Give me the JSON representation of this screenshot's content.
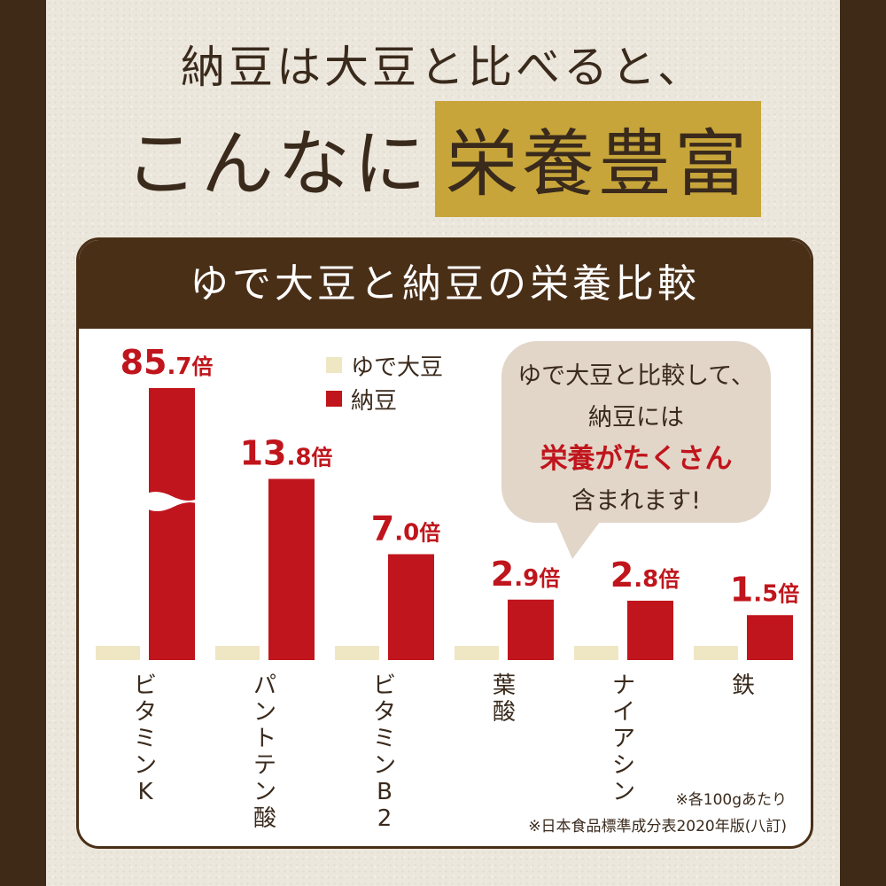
{
  "headline": {
    "line1": "納豆は大豆と比べると、",
    "line2_plain": "こんなに",
    "line2_highlight": "栄養豊富"
  },
  "panel_title": "ゆで大豆と納豆の栄養比較",
  "legend": [
    {
      "name": "ゆで大豆",
      "color": "#efe6c4"
    },
    {
      "name": "納豆",
      "color": "#c0151c"
    }
  ],
  "bubble": {
    "line1": "ゆで大豆と比較して、",
    "line2": "納豆には",
    "line3": "栄養がたくさん",
    "line4": "含まれます!"
  },
  "notes": [
    "※各100gあたり",
    "※日本食品標準成分表2020年版(八訂)"
  ],
  "chart_data": {
    "type": "bar",
    "categories": [
      "ビタミンK",
      "パントテン酸",
      "ビタミンB2",
      "葉酸",
      "ナイアシン",
      "鉄"
    ],
    "series": [
      {
        "name": "ゆで大豆",
        "values": [
          1,
          1,
          1,
          1,
          1,
          1
        ]
      },
      {
        "name": "納豆",
        "values": [
          85.7,
          13.8,
          7.0,
          2.9,
          2.8,
          1.5
        ]
      }
    ],
    "data_labels": [
      {
        "int": "85",
        "dec": ".7",
        "unit": "倍"
      },
      {
        "int": "13",
        "dec": ".8",
        "unit": "倍"
      },
      {
        "int": "7",
        "dec": ".0",
        "unit": "倍"
      },
      {
        "int": "2",
        "dec": ".9",
        "unit": "倍"
      },
      {
        "int": "2",
        "dec": ".8",
        "unit": "倍"
      },
      {
        "int": "1",
        "dec": ".5",
        "unit": "倍"
      }
    ],
    "axis_break_category": "ビタミンK",
    "legend_position": "top",
    "grid": false,
    "colors": {
      "boiled_soybean": "#efe6c4",
      "natto": "#c0151c"
    }
  }
}
